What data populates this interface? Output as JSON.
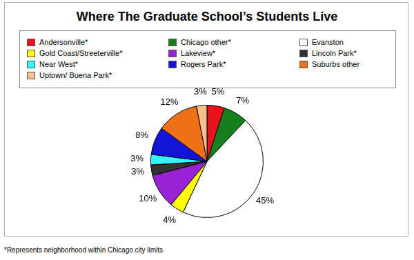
{
  "chart_data": {
    "type": "pie",
    "title": "Where The Graduate School’s Students Live",
    "categories": [
      "Andersonville*",
      "Chicago other*",
      "Evanston",
      "Gold Coast/Streeterville*",
      "Lakeview*",
      "Lincoln Park*",
      "Near West*",
      "Rogers Park*",
      "Suburbs other",
      "Uptown/ Buena Park*"
    ],
    "values": [
      5,
      7,
      45,
      4,
      10,
      3,
      3,
      8,
      12,
      3
    ],
    "value_labels": [
      "5%",
      "7%",
      "45%",
      "4%",
      "10%",
      "3%",
      "3%",
      "8%",
      "12%",
      "3%"
    ],
    "colors": [
      "#e8141c",
      "#15801c",
      "#ffffff",
      "#ffff00",
      "#9a22d6",
      "#333333",
      "#33f5ff",
      "#1414d8",
      "#f07018",
      "#f6c08c"
    ],
    "legend": "top",
    "data_labels": true,
    "annotations": [
      "*Represents neighborhood within Chicago city limits"
    ]
  }
}
